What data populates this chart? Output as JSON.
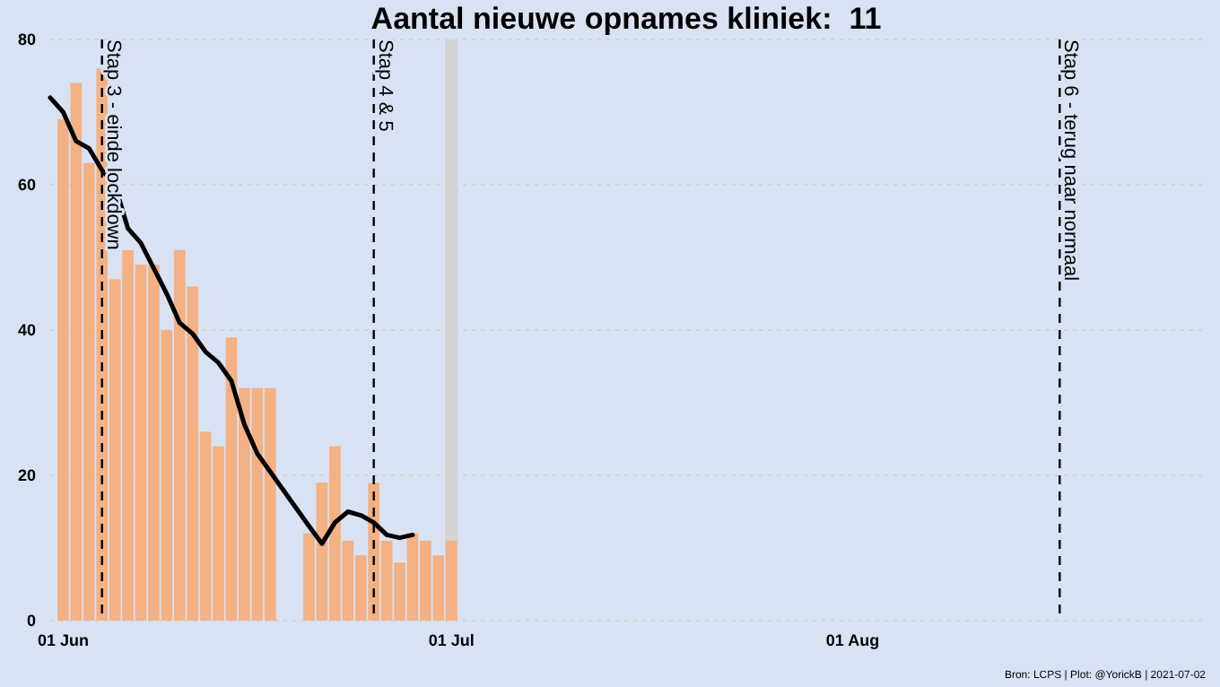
{
  "chart_data": {
    "type": "bar",
    "title": "Aantal nieuwe opnames kliniek:  11",
    "xlim": [
      "2021-05-31",
      "2021-08-28"
    ],
    "xticks": [
      {
        "value": "2021-06-01",
        "label": "01 Jun"
      },
      {
        "value": "2021-07-01",
        "label": "01 Jul"
      },
      {
        "value": "2021-08-01",
        "label": "01 Aug"
      }
    ],
    "ylim": [
      0,
      80
    ],
    "yticks": [
      0,
      20,
      40,
      60,
      80
    ],
    "grid": "y",
    "series": [
      {
        "color": "#f4b183",
        "x": [
          "2021-06-01",
          "2021-06-02",
          "2021-06-03",
          "2021-06-04",
          "2021-06-05",
          "2021-06-06",
          "2021-06-07",
          "2021-06-08",
          "2021-06-09",
          "2021-06-10",
          "2021-06-11",
          "2021-06-12",
          "2021-06-13",
          "2021-06-14",
          "2021-06-15",
          "2021-06-16",
          "2021-06-17",
          "2021-06-18",
          "2021-06-19",
          "2021-06-20",
          "2021-06-21",
          "2021-06-22",
          "2021-06-23",
          "2021-06-24",
          "2021-06-25",
          "2021-06-26",
          "2021-06-27",
          "2021-06-28",
          "2021-06-29",
          "2021-06-30",
          "2021-07-01"
        ],
        "values": [
          69,
          74,
          63,
          76,
          47,
          51,
          49,
          49,
          40,
          51,
          46,
          26,
          24,
          39,
          32,
          32,
          32,
          null,
          null,
          12,
          19,
          24,
          11,
          9,
          19,
          11,
          8,
          12,
          11,
          9,
          11
        ]
      },
      {
        "type": "line",
        "color": "#000000",
        "x": [
          "2021-05-31",
          "2021-06-01",
          "2021-06-02",
          "2021-06-03",
          "2021-06-04",
          "2021-06-05",
          "2021-06-06",
          "2021-06-07",
          "2021-06-08",
          "2021-06-09",
          "2021-06-10",
          "2021-06-11",
          "2021-06-12",
          "2021-06-13",
          "2021-06-14",
          "2021-06-15",
          "2021-06-16",
          "2021-06-17",
          "2021-06-18",
          "2021-06-19",
          "2021-06-20",
          "2021-06-21",
          "2021-06-22",
          "2021-06-23",
          "2021-06-24",
          "2021-06-25",
          "2021-06-26",
          "2021-06-27",
          "2021-06-28"
        ],
        "values": [
          72,
          70,
          66,
          65,
          62,
          60,
          54,
          52,
          48.5,
          45,
          41,
          39.5,
          37,
          35.5,
          33,
          27,
          23,
          20.5,
          18,
          15.5,
          13,
          10.6,
          13.5,
          15,
          14.5,
          13.5,
          11.8,
          11.4,
          11.8
        ]
      }
    ],
    "ref_lines": [
      {
        "axis": "x",
        "value": "2021-06-04",
        "label": "Stap 3 - einde lockdown",
        "color": "#000000",
        "line_style": "dashed"
      },
      {
        "axis": "x",
        "value": "2021-06-25",
        "label": "Stap 4 & 5",
        "color": "#000000",
        "line_style": "dashed"
      },
      {
        "axis": "x",
        "value": "2021-08-17",
        "label": "Stap 6 - terug naar normaal",
        "color": "#000000",
        "line_style": "dashed"
      }
    ],
    "bands": [
      {
        "axis": "x",
        "from": "2021-06-30T12:00",
        "to": "2021-07-01T12:00",
        "color": "#d3d3d3"
      }
    ],
    "annotations": [
      "Bron: LCPS | Plot: @YorickB | 2021-07-02"
    ]
  }
}
